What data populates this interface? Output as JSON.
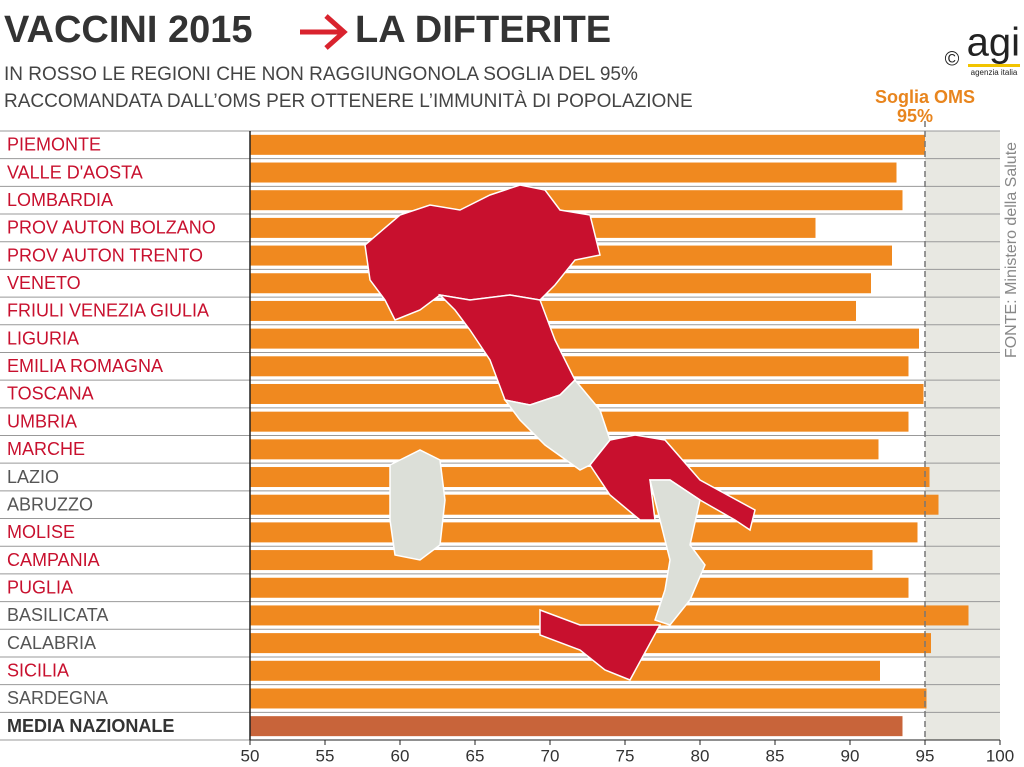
{
  "chart_data": {
    "type": "bar",
    "title": [
      "VACCINI 2015",
      "LA DIFTERITE"
    ],
    "subtitle": [
      "IN ROSSO LE REGIONI CHE NON RAGGIUNGONOLA SOGLIA DEL 95%",
      "RACCOMANDATA DALL’OMS PER OTTENERE L’IMMUNITÀ DI POPOLAZIONE"
    ],
    "source": "FONTE: Ministero della Salute",
    "logo": {
      "name": "agi",
      "tagline": "agenzia italia",
      "copyright": "©"
    },
    "threshold": {
      "value": 95,
      "label": [
        "Soglia OMS",
        "95%"
      ],
      "color": "#e8851e"
    },
    "categories": [
      "PIEMONTE",
      "VALLE D'AOSTA",
      "LOMBARDIA",
      "PROV AUTON BOLZANO",
      "PROV AUTON TRENTO",
      "VENETO",
      "FRIULI VENEZIA GIULIA",
      "LIGURIA",
      "EMILIA ROMAGNA",
      "TOSCANA",
      "UMBRIA",
      "MARCHE",
      "LAZIO",
      "ABRUZZO",
      "MOLISE",
      "CAMPANIA",
      "PUGLIA",
      "BASILICATA",
      "CALABRIA",
      "SICILIA",
      "SARDEGNA",
      "MEDIA NAZIONALE"
    ],
    "values": [
      95.0,
      93.1,
      93.5,
      87.7,
      92.8,
      91.4,
      90.4,
      94.6,
      93.9,
      94.9,
      93.9,
      91.9,
      95.3,
      95.9,
      94.5,
      91.5,
      93.9,
      97.9,
      95.4,
      92.0,
      95.1,
      93.5
    ],
    "colors": [
      "#f0891f",
      "#f0891f",
      "#f0891f",
      "#f0891f",
      "#f0891f",
      "#f0891f",
      "#f0891f",
      "#f0891f",
      "#f0891f",
      "#f0891f",
      "#f0891f",
      "#f0891f",
      "#f0891f",
      "#f0891f",
      "#f0891f",
      "#f0891f",
      "#f0891f",
      "#f0891f",
      "#f0891f",
      "#f0891f",
      "#f0891f",
      "#c8643a"
    ],
    "label_colors": [
      "#c8102e",
      "#c8102e",
      "#c8102e",
      "#c8102e",
      "#c8102e",
      "#c8102e",
      "#c8102e",
      "#c8102e",
      "#c8102e",
      "#c8102e",
      "#c8102e",
      "#c8102e",
      "#555555",
      "#555555",
      "#c8102e",
      "#c8102e",
      "#c8102e",
      "#555555",
      "#555555",
      "#c8102e",
      "#555555",
      "#333333"
    ],
    "xlim": [
      50,
      100
    ],
    "xticks": [
      50,
      55,
      60,
      65,
      70,
      75,
      80,
      85,
      90,
      95,
      100
    ]
  }
}
